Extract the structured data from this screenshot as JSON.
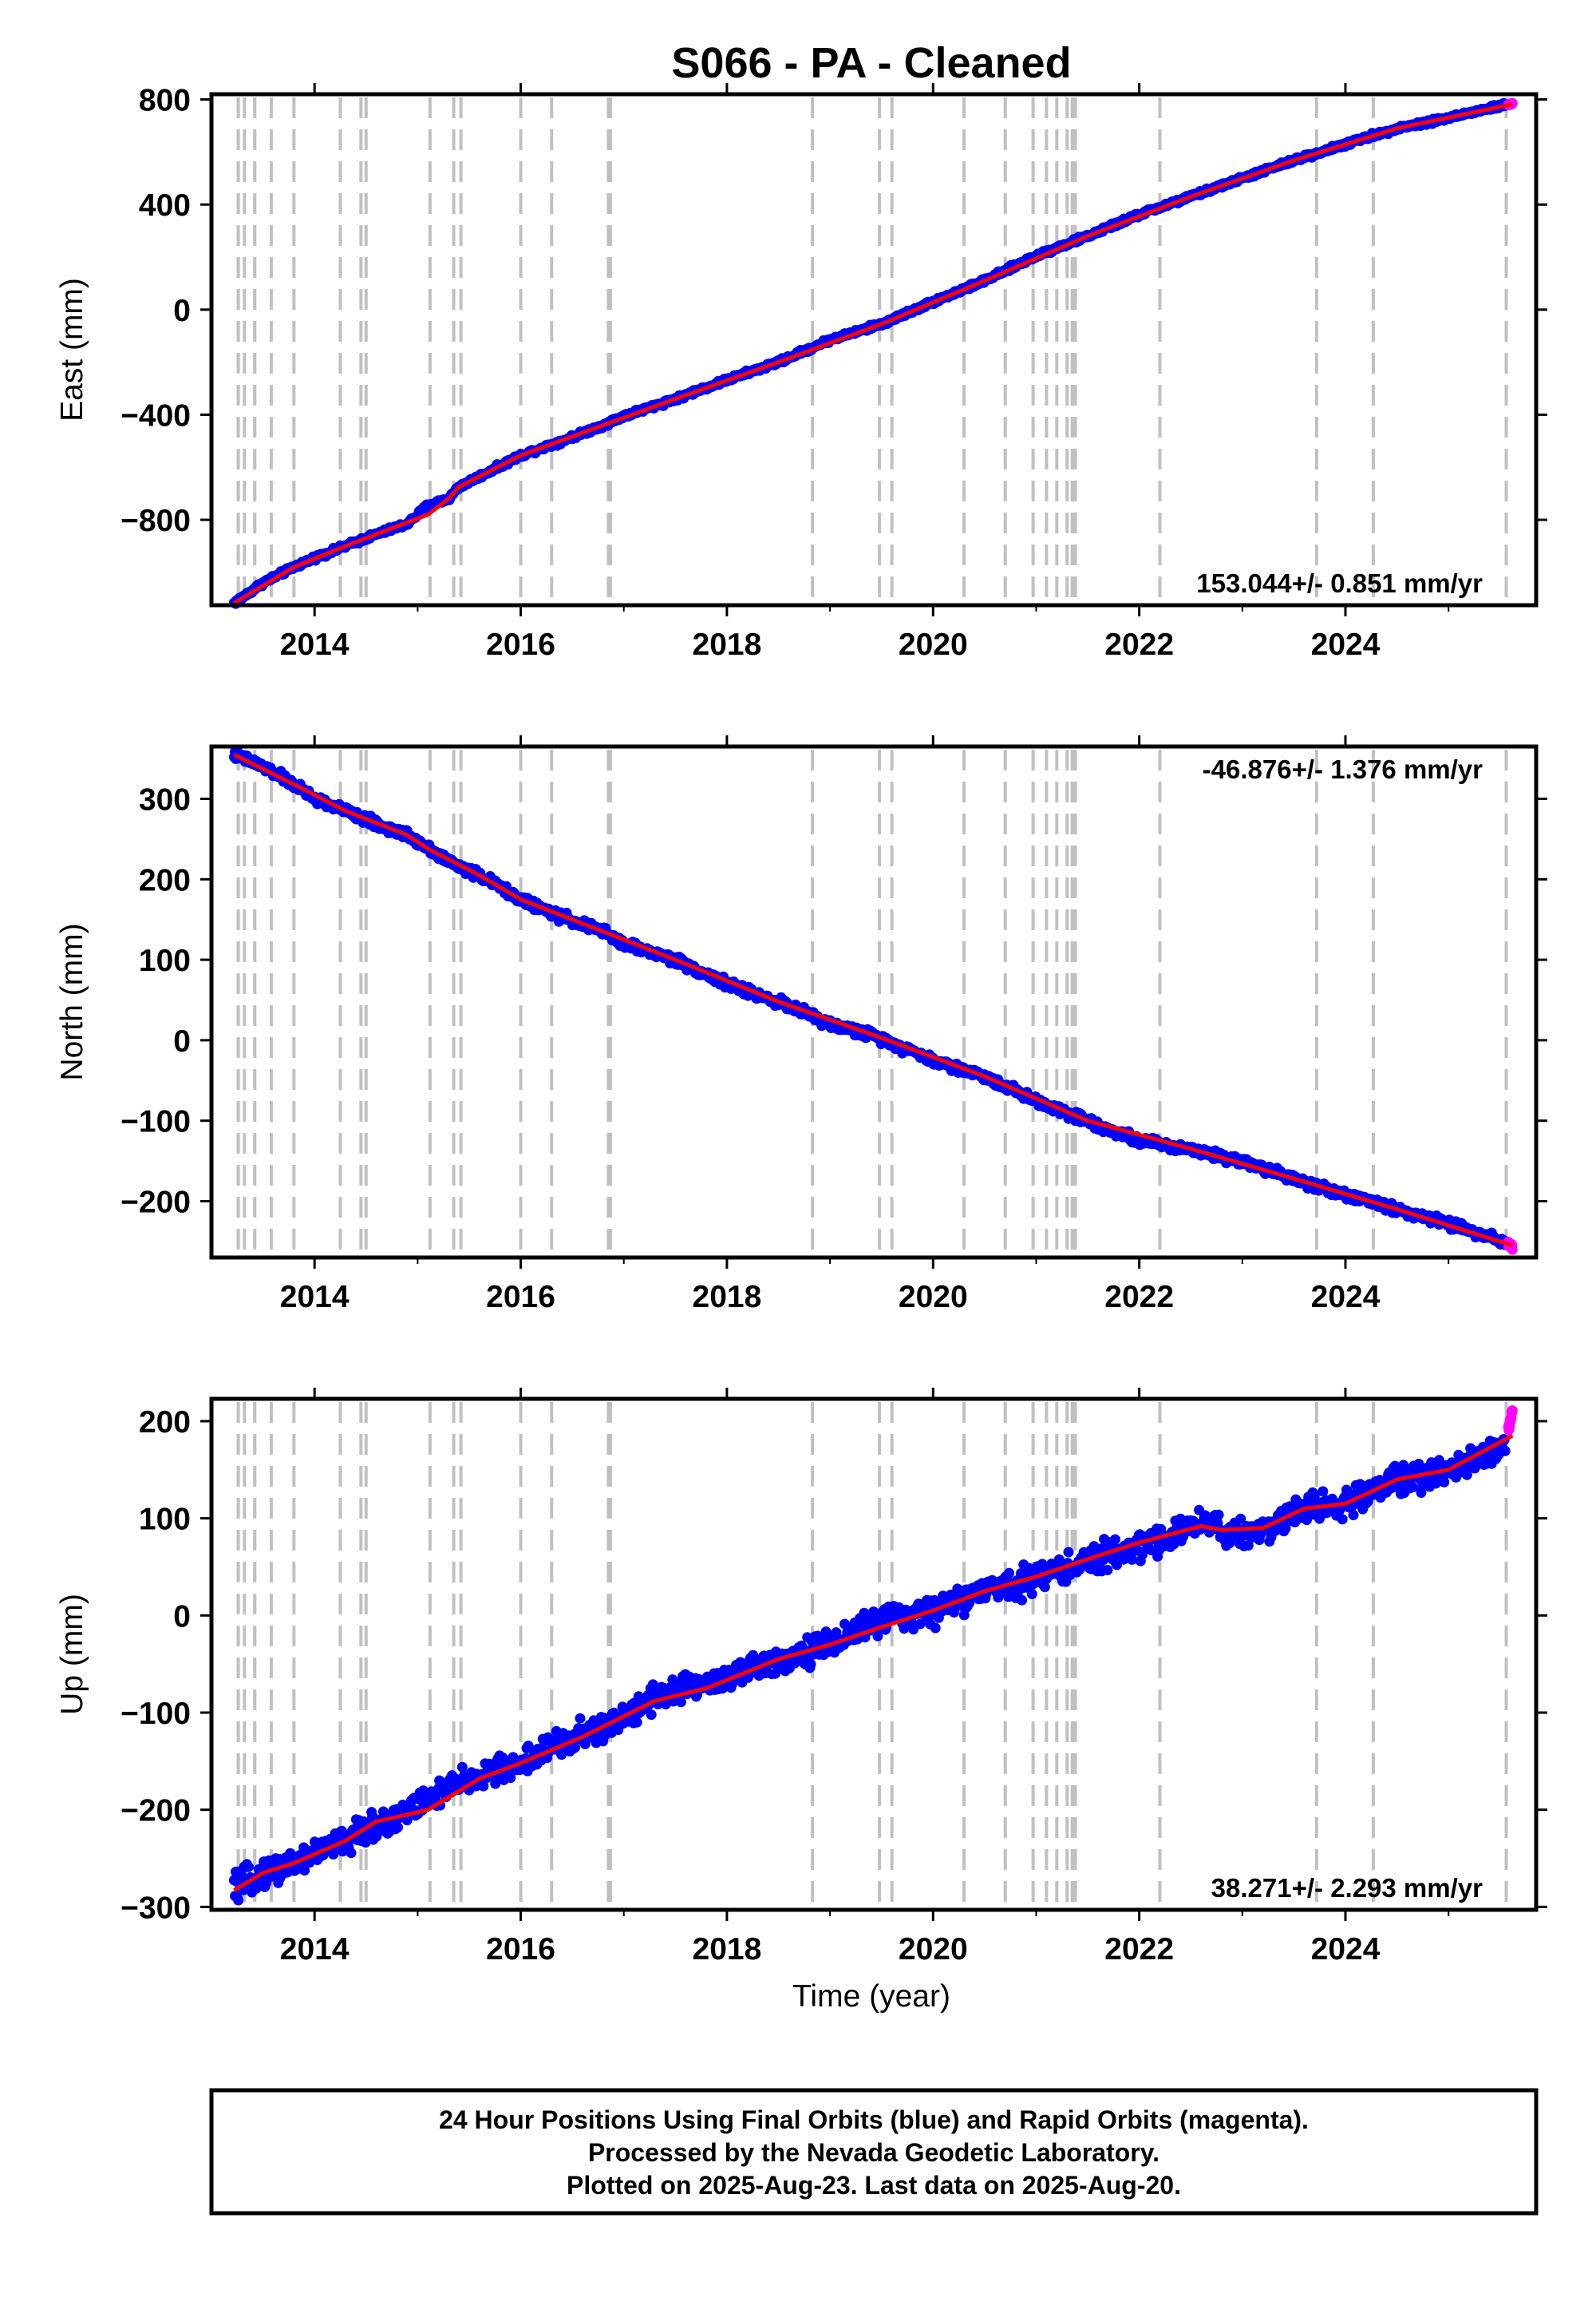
{
  "title": "S066  - PA - Cleaned",
  "xlabel": "Time (year)",
  "footnote": [
    "24 Hour Positions Using Final Orbits (blue) and Rapid Orbits (magenta).",
    "Processed by the Nevada Geodetic Laboratory.",
    "Plotted on 2025-Aug-23. Last data on 2025-Aug-20."
  ],
  "colors": {
    "final_orbits": "#0000ff",
    "rapid_orbits": "#ff00ff",
    "model_fit": "#ff0000",
    "event_lines": "#c0c0c0"
  },
  "chart_data": [
    {
      "type": "scatter",
      "ylabel": "East (mm)",
      "rate_label": "153.044+/- 0.851 mm/yr",
      "rate_position": "bottom-right",
      "xlim": [
        2013.0,
        2025.85
      ],
      "ylim": [
        -1125,
        820
      ],
      "xticks": [
        2014,
        2016,
        2018,
        2020,
        2022,
        2024
      ],
      "yticks": [
        800,
        400,
        0,
        -400,
        -800
      ],
      "ytick_labels": [
        "800",
        "400",
        "0",
        "−400",
        "−800"
      ],
      "grid": false,
      "series": [
        {
          "name": "24 Hour Positions Using Final Orbits (blue)",
          "color": "#0000ff",
          "x": [
            2013.22,
            2013.5,
            2013.8,
            2014.0,
            2014.3,
            2014.6,
            2014.9,
            2015.1,
            2015.3,
            2015.4,
            2015.8,
            2016.0,
            2016.4,
            2016.8,
            2017.0,
            2017.5,
            2018.0,
            2018.5,
            2019.0,
            2019.5,
            2020.0,
            2020.5,
            2021.0,
            2021.5,
            2022.0,
            2022.5,
            2023.0,
            2023.5,
            2024.0,
            2024.5,
            2025.0,
            2025.55
          ],
          "y": [
            -1117,
            -1040,
            -980,
            -945,
            -900,
            -855,
            -815,
            -745,
            -720,
            -675,
            -595,
            -555,
            -500,
            -440,
            -405,
            -340,
            -268,
            -200,
            -115,
            -55,
            30,
            110,
            205,
            280,
            362,
            430,
            500,
            568,
            630,
            690,
            730,
            780
          ],
          "noise": 6
        },
        {
          "name": "24 Hour Positions Using Rapid Orbits (magenta)",
          "color": "#ff00ff",
          "x": [
            2025.58,
            2025.6,
            2025.62
          ],
          "y": [
            780,
            782,
            785
          ],
          "noise": 2
        }
      ],
      "fit": {
        "name": "model fit",
        "color": "#ff0000",
        "x": [
          2013.22,
          2013.8,
          2014.3,
          2014.9,
          2015.1,
          2015.3,
          2015.4,
          2016.0,
          2016.8,
          2017.5,
          2018.5,
          2019.5,
          2020.5,
          2021.5,
          2022.5,
          2023.5,
          2024.5,
          2025.62
        ],
        "y": [
          -1117,
          -980,
          -900,
          -810,
          -780,
          -720,
          -675,
          -555,
          -440,
          -340,
          -200,
          -55,
          110,
          280,
          430,
          568,
          690,
          782
        ]
      },
      "event_lines": [
        2013.26,
        2013.32,
        2013.42,
        2013.58,
        2013.8,
        2014.25,
        2014.45,
        2014.5,
        2015.12,
        2015.35,
        2015.42,
        2016.0,
        2016.3,
        2016.85,
        2016.87,
        2018.83,
        2019.48,
        2019.6,
        2020.3,
        2020.7,
        2020.97,
        2021.1,
        2021.2,
        2021.3,
        2021.35,
        2021.38,
        2022.2,
        2023.72,
        2024.27,
        2025.56
      ]
    },
    {
      "type": "scatter",
      "ylabel": "North (mm)",
      "rate_label": "-46.876+/- 1.376 mm/yr",
      "rate_position": "top-right",
      "xlim": [
        2013.0,
        2025.85
      ],
      "ylim": [
        -270,
        365
      ],
      "xticks": [
        2014,
        2016,
        2018,
        2020,
        2022,
        2024
      ],
      "yticks": [
        300,
        200,
        100,
        0,
        -100,
        -200
      ],
      "ytick_labels": [
        "300",
        "200",
        "100",
        "0",
        "−100",
        "−200"
      ],
      "grid": false,
      "series": [
        {
          "name": "24 Hour Positions Using Final Orbits (blue)",
          "color": "#0000ff",
          "x": [
            2013.22,
            2013.5,
            2013.8,
            2014.0,
            2014.3,
            2014.6,
            2014.9,
            2015.1,
            2015.3,
            2015.6,
            2016.0,
            2016.3,
            2016.8,
            2017.0,
            2017.5,
            2018.0,
            2018.5,
            2019.0,
            2019.5,
            2020.0,
            2020.5,
            2021.0,
            2021.5,
            2022.0,
            2022.5,
            2023.0,
            2023.5,
            2024.0,
            2024.5,
            2025.0,
            2025.55
          ],
          "y": [
            355,
            340,
            318,
            300,
            285,
            268,
            255,
            240,
            222,
            205,
            175,
            158,
            135,
            120,
            100,
            70,
            48,
            20,
            3,
            -25,
            -45,
            -75,
            -100,
            -125,
            -135,
            -150,
            -172,
            -192,
            -210,
            -228,
            -250
          ],
          "noise": 4
        },
        {
          "name": "24 Hour Positions Using Rapid Orbits (magenta)",
          "color": "#ff00ff",
          "x": [
            2025.58,
            2025.6,
            2025.62
          ],
          "y": [
            -252,
            -255,
            -258
          ],
          "noise": 2
        }
      ],
      "fit": {
        "name": "model fit",
        "color": "#ff0000",
        "x": [
          2013.22,
          2013.8,
          2014.3,
          2014.9,
          2015.1,
          2015.6,
          2016.0,
          2016.8,
          2017.5,
          2018.5,
          2019.5,
          2020.5,
          2021.5,
          2022.5,
          2023.5,
          2024.5,
          2025.62
        ],
        "y": [
          355,
          318,
          285,
          255,
          238,
          205,
          175,
          135,
          100,
          48,
          3,
          -45,
          -100,
          -135,
          -172,
          -210,
          -255
        ]
      },
      "event_lines": [
        2013.26,
        2013.32,
        2013.42,
        2013.58,
        2013.8,
        2014.25,
        2014.45,
        2014.5,
        2015.12,
        2015.35,
        2015.42,
        2016.0,
        2016.3,
        2016.85,
        2016.87,
        2018.83,
        2019.48,
        2019.6,
        2020.3,
        2020.7,
        2020.97,
        2021.1,
        2021.2,
        2021.3,
        2021.35,
        2021.38,
        2022.2,
        2023.72,
        2024.27,
        2025.56
      ]
    },
    {
      "type": "scatter",
      "ylabel": "Up (mm)",
      "rate_label": "38.271+/- 2.293 mm/yr",
      "rate_position": "bottom-right",
      "xlim": [
        2013.0,
        2025.85
      ],
      "ylim": [
        -303,
        223
      ],
      "xticks": [
        2014,
        2016,
        2018,
        2020,
        2022,
        2024
      ],
      "yticks": [
        200,
        100,
        0,
        -100,
        -200,
        -300
      ],
      "ytick_labels": [
        "200",
        "100",
        "0",
        "−100",
        "−200",
        "−300"
      ],
      "grid": false,
      "series": [
        {
          "name": "24 Hour Positions Using Final Orbits (blue)",
          "color": "#0000ff",
          "x": [
            2013.22,
            2013.5,
            2013.8,
            2014.0,
            2014.3,
            2014.6,
            2014.8,
            2015.1,
            2015.3,
            2015.6,
            2016.0,
            2016.3,
            2016.6,
            2016.9,
            2017.3,
            2017.6,
            2018.0,
            2018.5,
            2019.0,
            2019.4,
            2020.0,
            2020.5,
            2021.0,
            2021.5,
            2022.0,
            2022.5,
            2022.75,
            2022.8,
            2023.2,
            2023.6,
            2024.0,
            2024.5,
            2025.0,
            2025.55
          ],
          "y": [
            -282,
            -265,
            -255,
            -245,
            -232,
            -215,
            -208,
            -190,
            -178,
            -165,
            -152,
            -135,
            -123,
            -113,
            -82,
            -75,
            -65,
            -45,
            -30,
            -8,
            5,
            25,
            40,
            55,
            72,
            90,
            100,
            82,
            88,
            110,
            115,
            140,
            150,
            175
          ],
          "noise": 10
        },
        {
          "name": "24 Hour Positions Using Rapid Orbits (magenta)",
          "color": "#ff00ff",
          "x": [
            2025.58,
            2025.6,
            2025.62
          ],
          "y": [
            190,
            200,
            210
          ],
          "noise": 4
        }
      ],
      "fit": {
        "name": "model fit",
        "color": "#ff0000",
        "x": [
          2013.22,
          2013.5,
          2013.8,
          2014.3,
          2014.6,
          2014.9,
          2015.1,
          2015.6,
          2016.0,
          2016.6,
          2017.3,
          2017.8,
          2018.5,
          2019.0,
          2019.5,
          2020.0,
          2020.5,
          2021.0,
          2021.5,
          2022.0,
          2022.6,
          2022.8,
          2023.2,
          2023.6,
          2024.0,
          2024.5,
          2025.0,
          2025.62
        ],
        "y": [
          -283,
          -265,
          -255,
          -232,
          -212,
          -205,
          -200,
          -168,
          -152,
          -125,
          -88,
          -75,
          -45,
          -30,
          -12,
          5,
          25,
          40,
          58,
          75,
          92,
          88,
          90,
          110,
          115,
          140,
          150,
          185
        ]
      },
      "event_lines": [
        2013.26,
        2013.32,
        2013.42,
        2013.58,
        2013.8,
        2014.25,
        2014.45,
        2014.5,
        2015.12,
        2015.35,
        2015.42,
        2016.0,
        2016.3,
        2016.85,
        2016.87,
        2018.83,
        2019.48,
        2019.6,
        2020.3,
        2020.7,
        2020.97,
        2021.1,
        2021.2,
        2021.3,
        2021.35,
        2021.38,
        2022.2,
        2023.72,
        2024.27,
        2025.56
      ]
    }
  ]
}
